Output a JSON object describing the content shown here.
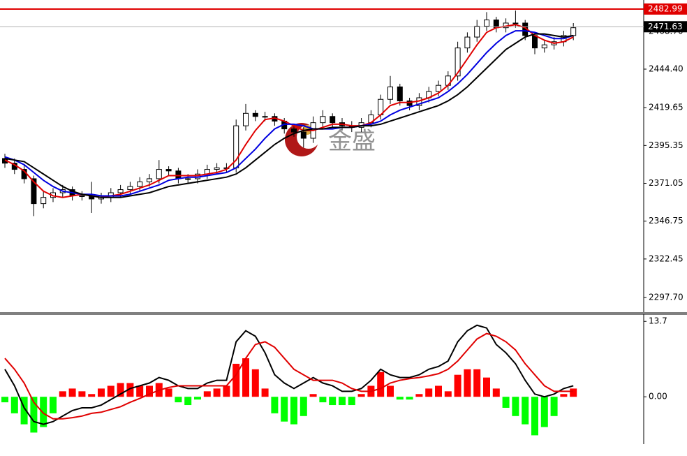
{
  "chart_data": [
    {
      "type": "candlestick",
      "open": [
        2387,
        2384,
        2380,
        2374,
        2358,
        2362,
        2365,
        2367,
        2363,
        2363,
        2361,
        2362,
        2365,
        2367,
        2369,
        2372,
        2374,
        2380,
        2379,
        2374,
        2374,
        2377,
        2380,
        2381,
        2381,
        2408,
        2416,
        2414,
        2414,
        2411,
        2406,
        2404,
        2400,
        2410,
        2414,
        2410,
        2408,
        2407,
        2410,
        2415,
        2425,
        2433,
        2424,
        2421,
        2426,
        2430,
        2434,
        2440,
        2458,
        2465,
        2472,
        2476,
        2471,
        2474,
        2474,
        2466,
        2458,
        2460,
        2462,
        2466
      ],
      "high": [
        2390,
        2387,
        2383,
        2376,
        2366,
        2368,
        2370,
        2369,
        2366,
        2372,
        2365,
        2368,
        2370,
        2372,
        2375,
        2377,
        2386,
        2382,
        2381,
        2377,
        2380,
        2383,
        2384,
        2384,
        2412,
        2422,
        2418,
        2417,
        2416,
        2413,
        2409,
        2407,
        2414,
        2418,
        2416,
        2413,
        2411,
        2413,
        2418,
        2428,
        2440,
        2435,
        2426,
        2429,
        2433,
        2437,
        2443,
        2462,
        2468,
        2476,
        2481,
        2478,
        2477,
        2482,
        2476,
        2468,
        2463,
        2465,
        2469,
        2474
      ],
      "low": [
        2381,
        2377,
        2371,
        2350,
        2355,
        2359,
        2362,
        2360,
        2360,
        2352,
        2358,
        2359,
        2362,
        2364,
        2366,
        2369,
        2371,
        2376,
        2371,
        2371,
        2371,
        2374,
        2377,
        2378,
        2378,
        2405,
        2411,
        2411,
        2408,
        2403,
        2401,
        2394,
        2397,
        2407,
        2407,
        2405,
        2404,
        2404,
        2407,
        2412,
        2422,
        2421,
        2418,
        2418,
        2423,
        2427,
        2431,
        2437,
        2455,
        2462,
        2469,
        2468,
        2468,
        2471,
        2463,
        2454,
        2455,
        2457,
        2459,
        2463
      ],
      "close": [
        2384,
        2380,
        2374,
        2358,
        2362,
        2365,
        2367,
        2363,
        2363,
        2361,
        2362,
        2365,
        2367,
        2369,
        2372,
        2374,
        2380,
        2379,
        2374,
        2374,
        2377,
        2380,
        2381,
        2381,
        2408,
        2416,
        2414,
        2414,
        2411,
        2406,
        2404,
        2400,
        2410,
        2414,
        2410,
        2408,
        2407,
        2410,
        2415,
        2425,
        2433,
        2424,
        2421,
        2426,
        2430,
        2434,
        2440,
        2458,
        2465,
        2472,
        2476,
        2471,
        2474,
        2474,
        2466,
        2458,
        2460,
        2462,
        2466,
        2471
      ],
      "series": [
        {
          "color": "#e00000",
          "values": [
            2386,
            2383,
            2379,
            2372,
            2366,
            2363,
            2362,
            2363,
            2364,
            2363,
            2362,
            2363,
            2364,
            2366,
            2368,
            2370,
            2373,
            2376,
            2376,
            2376,
            2376,
            2377,
            2378,
            2380,
            2386,
            2396,
            2405,
            2412,
            2413,
            2411,
            2408,
            2405,
            2405,
            2407,
            2409,
            2409,
            2408,
            2408,
            2410,
            2415,
            2421,
            2423,
            2423,
            2424,
            2426,
            2429,
            2434,
            2442,
            2451,
            2460,
            2468,
            2471,
            2472,
            2473,
            2471,
            2466,
            2463,
            2461,
            2462,
            2465
          ]
        },
        {
          "color": "#0000e0",
          "values": [
            2388,
            2386,
            2383,
            2378,
            2373,
            2369,
            2366,
            2365,
            2364,
            2364,
            2363,
            2363,
            2363,
            2364,
            2366,
            2368,
            2370,
            2373,
            2374,
            2375,
            2375,
            2376,
            2377,
            2378,
            2381,
            2387,
            2393,
            2400,
            2406,
            2409,
            2409,
            2408,
            2406,
            2406,
            2406,
            2407,
            2407,
            2408,
            2409,
            2411,
            2415,
            2418,
            2420,
            2422,
            2424,
            2426,
            2430,
            2435,
            2441,
            2448,
            2455,
            2461,
            2466,
            2469,
            2469,
            2468,
            2466,
            2464,
            2464,
            2466
          ]
        },
        {
          "color": "#000000",
          "values": [
            2387,
            2386,
            2385,
            2381,
            2377,
            2373,
            2369,
            2366,
            2364,
            2363,
            2362,
            2362,
            2362,
            2363,
            2364,
            2365,
            2367,
            2369,
            2370,
            2371,
            2372,
            2373,
            2374,
            2375,
            2377,
            2381,
            2386,
            2391,
            2396,
            2400,
            2403,
            2405,
            2406,
            2406,
            2407,
            2407,
            2407,
            2408,
            2408,
            2409,
            2411,
            2413,
            2415,
            2417,
            2419,
            2421,
            2424,
            2428,
            2433,
            2439,
            2445,
            2451,
            2457,
            2461,
            2465,
            2467,
            2467,
            2466,
            2465,
            2466
          ]
        }
      ],
      "ylim": [
        2288.3,
        2488.8
      ],
      "yticks": [
        {
          "value": 2468.7,
          "label": "2468.70"
        },
        {
          "value": 2444.4,
          "label": "2444.40"
        },
        2419.65,
        2395.35,
        2371.05,
        2346.75,
        2322.45,
        {
          "value": 2297.7,
          "label": "2297.70"
        }
      ],
      "price_lines": [
        {
          "value": 2482.99,
          "color": "#e00000"
        },
        {
          "value": 2471.63,
          "color": "#b0b0b0"
        }
      ],
      "watermark": "金盛"
    },
    {
      "type": "macd",
      "values": [
        -1,
        -3,
        -5,
        -6.5,
        -5.5,
        -3,
        1,
        1.5,
        1,
        0.5,
        1.5,
        2,
        2.5,
        2.5,
        2,
        2,
        2.5,
        1.5,
        -1,
        -1.5,
        -0.5,
        1,
        1.5,
        2,
        6,
        7,
        5,
        1.5,
        -3,
        -4.5,
        -5,
        -3.5,
        0.5,
        -1,
        -1.5,
        -1.5,
        -1.5,
        0.5,
        2,
        4.5,
        2,
        -0.5,
        -0.5,
        0.5,
        1.5,
        2,
        1,
        4,
        5,
        5,
        3.5,
        1.5,
        -2,
        -3.5,
        -5,
        -7,
        -5.5,
        -3.5,
        0.5,
        1.5
      ],
      "up_color": "#ff0000",
      "down_color": "#00ff00",
      "series": [
        {
          "color": "#000000",
          "values": [
            5,
            2,
            -2,
            -4.5,
            -5,
            -4.5,
            -3.5,
            -2.5,
            -2,
            -2,
            -1.5,
            -0.5,
            0.5,
            1.5,
            2,
            2.5,
            3.5,
            3,
            2,
            1.5,
            1.5,
            2.5,
            3,
            3,
            10,
            12,
            11,
            8,
            4,
            2.5,
            1.5,
            2.5,
            3.5,
            2.5,
            2,
            1,
            1,
            1.5,
            3,
            5,
            4,
            3.5,
            3.5,
            4,
            5,
            5.5,
            6.5,
            10,
            12,
            13,
            12.5,
            9.5,
            8,
            6,
            3,
            0.5,
            0,
            0.5,
            1.5,
            2
          ]
        },
        {
          "color": "#e00000",
          "values": [
            7,
            5,
            2.5,
            -1,
            -3,
            -4,
            -4,
            -3.8,
            -3.5,
            -3,
            -2.8,
            -2.3,
            -1.8,
            -1,
            -0.3,
            0.5,
            1.2,
            1.7,
            2,
            2,
            2,
            2,
            2,
            2,
            4,
            7,
            9.5,
            10,
            9,
            7,
            5,
            4,
            3,
            3,
            3,
            2.5,
            1.5,
            1,
            1,
            1.5,
            2.5,
            3,
            3.3,
            3.5,
            3.8,
            4.2,
            5,
            6.5,
            8.5,
            10.5,
            11.5,
            11,
            10,
            8.5,
            6,
            4,
            2,
            1,
            1,
            1
          ]
        }
      ],
      "ylim": [
        -8.6,
        15.0
      ],
      "yticks": [
        13.7,
        {
          "value": 0,
          "label": "0.00"
        }
      ]
    }
  ]
}
